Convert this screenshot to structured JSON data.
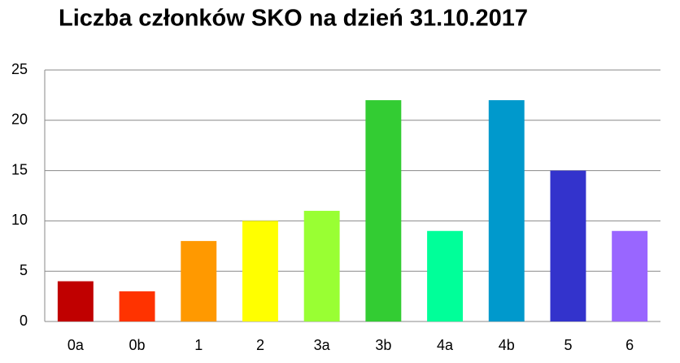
{
  "chart_data": {
    "type": "bar",
    "title": "Liczba członków SKO na dzień 31.10.2017",
    "categories": [
      "0a",
      "0b",
      "1",
      "2",
      "3a",
      "3b",
      "4a",
      "4b",
      "5",
      "6"
    ],
    "values": [
      4,
      3,
      8,
      10,
      11,
      22,
      9,
      22,
      15,
      9
    ],
    "colors": [
      "#c00000",
      "#ff3300",
      "#ff9900",
      "#ffff00",
      "#99ff33",
      "#33cc33",
      "#00ff99",
      "#0099cc",
      "#3333cc",
      "#9966ff"
    ],
    "ylim": [
      0,
      25
    ],
    "yticks": [
      0,
      5,
      10,
      15,
      20,
      25
    ],
    "grid": true
  }
}
